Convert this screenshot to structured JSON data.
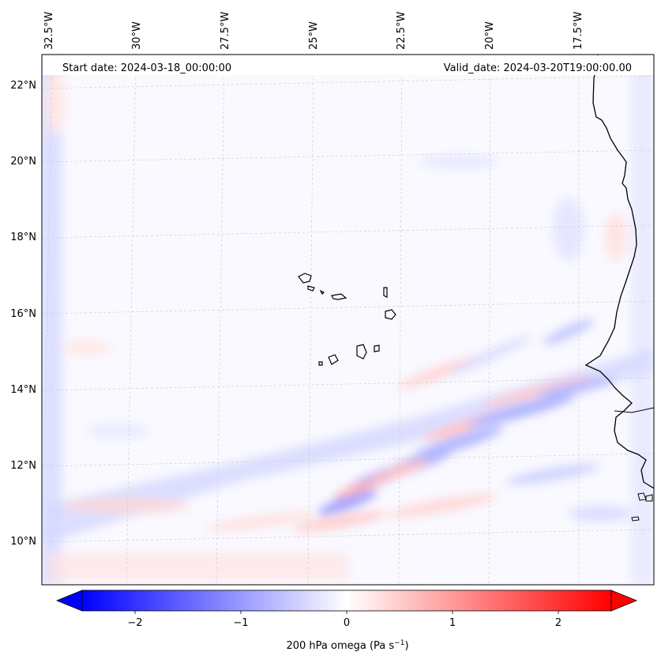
{
  "map": {
    "start_label": "Start date: 2024-03-18_00:00:00",
    "valid_label": "Valid_date: 2024-03-20T19:00:00.00",
    "lon_labels": [
      "32.5°W",
      "30°W",
      "27.5°W",
      "25°W",
      "22.5°W",
      "20°W",
      "17.5°W"
    ],
    "lat_labels": [
      "22°N",
      "20°N",
      "18°N",
      "16°N",
      "14°N",
      "12°N",
      "10°N"
    ],
    "variable": "200 hPa omega",
    "colors": {
      "negative": "#0000ff",
      "zero": "#ffffff",
      "positive": "#ff0000",
      "frame": "#000000",
      "grid": "#b0b0b0"
    }
  },
  "colorbar": {
    "ticks": [
      "−2",
      "−1",
      "0",
      "1",
      "2"
    ],
    "label": "200 hPa omega (Pa s",
    "label_sup": "−1",
    "label_close": ")",
    "vmin": -2.6,
    "vmax": 2.6
  }
}
